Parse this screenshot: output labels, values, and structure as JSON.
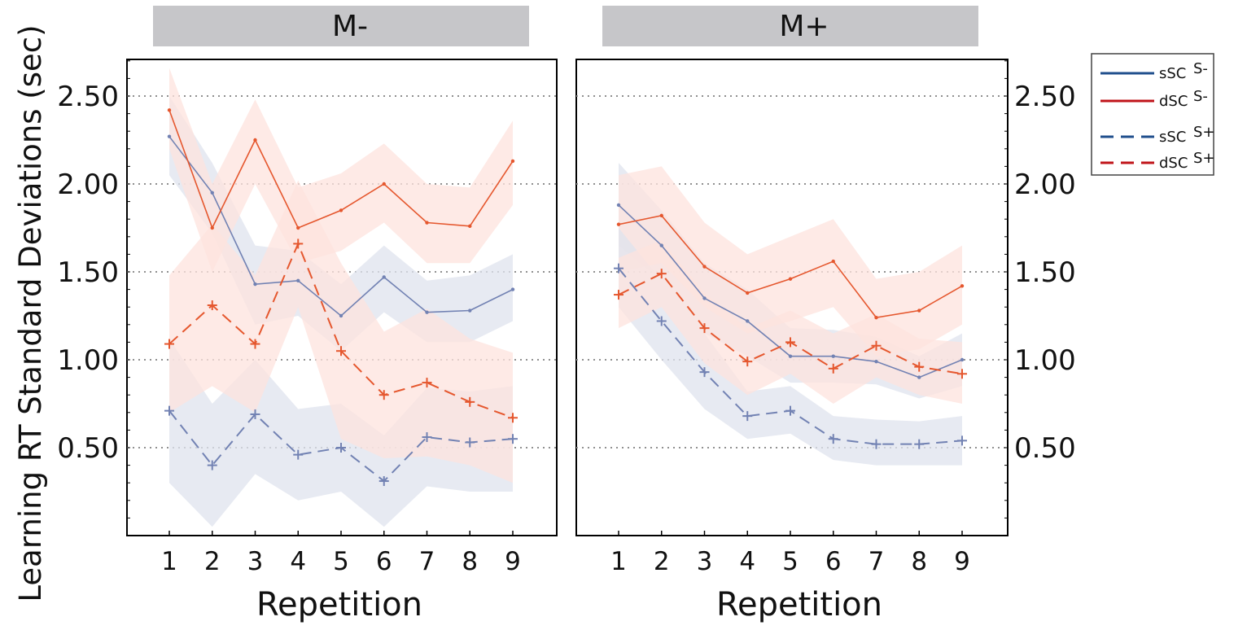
{
  "figure": {
    "ylabel": "Learning RT Standard Deviations (sec)",
    "yticks": [
      "0.50",
      "1.00",
      "1.50",
      "2.00",
      "2.50"
    ],
    "ytick_values": [
      0.5,
      1.0,
      1.5,
      2.0,
      2.5
    ],
    "legend": [
      {
        "line_label": "sSC",
        "state_label": "S-",
        "color": "#1f4e8c",
        "dash": false
      },
      {
        "line_label": "dSC",
        "state_label": "S-",
        "color": "#c0141a",
        "dash": false
      },
      {
        "line_label": "sSC",
        "state_label": "S+",
        "color": "#1f4e8c",
        "dash": true
      },
      {
        "line_label": "dSC",
        "state_label": "S+",
        "color": "#c0141a",
        "dash": true
      }
    ]
  },
  "colors": {
    "blue_line": "#7282b3",
    "blue_band": "#dfe3ee",
    "red_line": "#e5572e",
    "red_band": "#fde3de",
    "panel_title_bg": "#c6c6c9",
    "grid": "#909090"
  },
  "chart_data": [
    {
      "type": "line",
      "panel": "left",
      "title": "M-",
      "xlabel": "Repetition",
      "ylabel": "Learning RT Standard Deviations (sec)",
      "ylim": [
        0.0,
        2.72
      ],
      "x": [
        1,
        2,
        3,
        4,
        5,
        6,
        7,
        8,
        9
      ],
      "series": [
        {
          "name": "sSC S-",
          "color": "#7282b3",
          "dash": false,
          "marker": "dot",
          "values": [
            2.27,
            1.95,
            1.43,
            1.45,
            1.25,
            1.47,
            1.27,
            1.28,
            1.4
          ],
          "lower": [
            2.05,
            1.72,
            1.2,
            1.25,
            1.05,
            1.27,
            1.1,
            1.1,
            1.22
          ],
          "upper": [
            2.5,
            2.12,
            1.65,
            1.62,
            1.43,
            1.65,
            1.45,
            1.48,
            1.6
          ]
        },
        {
          "name": "dSC S-",
          "color": "#e5572e",
          "dash": false,
          "marker": "dot",
          "values": [
            2.42,
            1.75,
            2.25,
            1.75,
            1.85,
            2.0,
            1.78,
            1.76,
            2.13
          ],
          "lower": [
            2.2,
            1.5,
            2.0,
            1.55,
            1.62,
            1.78,
            1.55,
            1.55,
            1.88
          ],
          "upper": [
            2.66,
            2.0,
            2.48,
            1.98,
            2.06,
            2.23,
            2.0,
            1.98,
            2.36
          ]
        },
        {
          "name": "sSC S+",
          "color": "#7282b3",
          "dash": true,
          "marker": "plus",
          "values": [
            0.71,
            0.4,
            0.69,
            0.46,
            0.5,
            0.31,
            0.56,
            0.53,
            0.55
          ],
          "lower": [
            0.3,
            0.05,
            0.35,
            0.2,
            0.25,
            0.05,
            0.28,
            0.25,
            0.25
          ],
          "upper": [
            1.12,
            0.75,
            1.0,
            0.72,
            0.75,
            0.57,
            0.84,
            0.82,
            0.85
          ]
        },
        {
          "name": "dSC S+",
          "color": "#e5572e",
          "dash": true,
          "marker": "plus",
          "values": [
            1.09,
            1.31,
            1.09,
            1.66,
            1.05,
            0.8,
            0.87,
            0.76,
            0.67
          ],
          "lower": [
            0.7,
            0.85,
            0.7,
            1.3,
            0.55,
            0.44,
            0.45,
            0.4,
            0.3
          ],
          "upper": [
            1.48,
            1.77,
            1.48,
            2.02,
            1.55,
            1.16,
            1.29,
            1.12,
            1.04
          ]
        }
      ]
    },
    {
      "type": "line",
      "panel": "right",
      "title": "M+",
      "xlabel": "Repetition",
      "ylim": [
        0.0,
        2.72
      ],
      "x": [
        1,
        2,
        3,
        4,
        5,
        6,
        7,
        8,
        9
      ],
      "series": [
        {
          "name": "sSC S-",
          "color": "#7282b3",
          "dash": false,
          "marker": "dot",
          "values": [
            1.88,
            1.65,
            1.35,
            1.22,
            1.02,
            1.02,
            0.99,
            0.9,
            1.0
          ],
          "lower": [
            1.65,
            1.45,
            1.15,
            1.02,
            0.87,
            0.87,
            0.86,
            0.78,
            0.85
          ],
          "upper": [
            2.12,
            1.85,
            1.55,
            1.4,
            1.18,
            1.17,
            1.13,
            1.02,
            1.15
          ]
        },
        {
          "name": "dSC S-",
          "color": "#e5572e",
          "dash": false,
          "marker": "dot",
          "values": [
            1.77,
            1.82,
            1.53,
            1.38,
            1.46,
            1.56,
            1.24,
            1.28,
            1.42
          ],
          "lower": [
            1.5,
            1.55,
            1.3,
            1.15,
            1.22,
            1.3,
            1.02,
            1.06,
            1.2
          ],
          "upper": [
            2.05,
            2.1,
            1.78,
            1.6,
            1.7,
            1.8,
            1.46,
            1.5,
            1.65
          ]
        },
        {
          "name": "sSC S+",
          "color": "#7282b3",
          "dash": true,
          "marker": "plus",
          "values": [
            1.52,
            1.22,
            0.93,
            0.68,
            0.71,
            0.55,
            0.52,
            0.52,
            0.54
          ],
          "lower": [
            1.3,
            1.0,
            0.72,
            0.55,
            0.58,
            0.43,
            0.4,
            0.4,
            0.4
          ],
          "upper": [
            1.75,
            1.45,
            1.15,
            0.82,
            0.85,
            0.68,
            0.66,
            0.65,
            0.68
          ]
        },
        {
          "name": "dSC S+",
          "color": "#e5572e",
          "dash": true,
          "marker": "plus",
          "values": [
            1.37,
            1.49,
            1.18,
            0.99,
            1.1,
            0.95,
            1.08,
            0.96,
            0.92
          ],
          "lower": [
            1.18,
            1.3,
            0.98,
            0.8,
            0.92,
            0.75,
            0.9,
            0.8,
            0.75
          ],
          "upper": [
            1.58,
            1.68,
            1.38,
            1.18,
            1.28,
            1.15,
            1.26,
            1.12,
            1.1
          ]
        }
      ]
    }
  ]
}
